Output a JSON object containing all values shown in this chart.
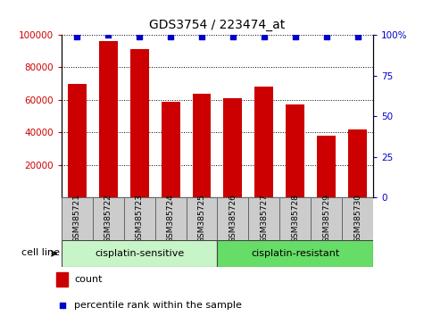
{
  "title": "GDS3754 / 223474_at",
  "samples": [
    "GSM385721",
    "GSM385722",
    "GSM385723",
    "GSM385724",
    "GSM385725",
    "GSM385726",
    "GSM385727",
    "GSM385728",
    "GSM385729",
    "GSM385730"
  ],
  "counts": [
    70000,
    96000,
    91000,
    59000,
    64000,
    61000,
    68000,
    57000,
    38000,
    42000
  ],
  "percentiles": [
    99,
    100,
    99,
    99,
    99,
    99,
    99,
    99,
    99,
    99
  ],
  "bar_color": "#cc0000",
  "dot_color": "#0000cc",
  "ylim_left": [
    0,
    100000
  ],
  "ylim_right": [
    0,
    100
  ],
  "yticks_left": [
    20000,
    40000,
    60000,
    80000,
    100000
  ],
  "yticks_right": [
    0,
    25,
    50,
    75,
    100
  ],
  "groups": [
    {
      "label": "cisplatin-sensitive",
      "start": 0,
      "end": 5,
      "color": "#c8f5c8"
    },
    {
      "label": "cisplatin-resistant",
      "start": 5,
      "end": 10,
      "color": "#66dd66"
    }
  ],
  "cell_line_label": "cell line",
  "legend_count_label": "count",
  "legend_percentile_label": "percentile rank within the sample",
  "tick_label_color_left": "#cc0000",
  "tick_label_color_right": "#0000cc",
  "xlabel_box_color": "#cccccc",
  "xlabel_box_linecolor": "#666666"
}
